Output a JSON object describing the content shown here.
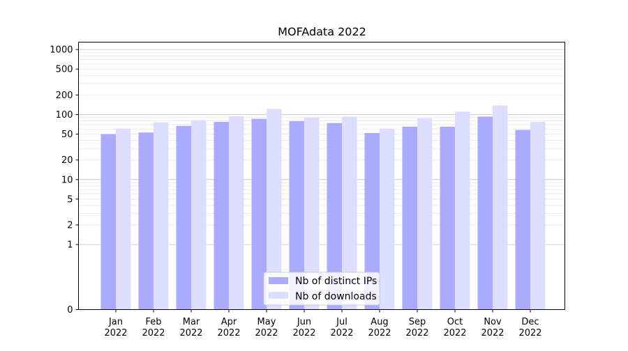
{
  "chart_data": {
    "type": "bar",
    "title": "MOFAdata 2022",
    "xlabel": "",
    "ylabel": "",
    "yscale": "symlog",
    "ylim": [
      0,
      1300
    ],
    "yticks": [
      0,
      1,
      2,
      5,
      10,
      20,
      50,
      100,
      200,
      500,
      1000
    ],
    "categories": [
      "Jan\n2022",
      "Feb\n2022",
      "Mar\n2022",
      "Apr\n2022",
      "May\n2022",
      "Jun\n2022",
      "Jul\n2022",
      "Aug\n2022",
      "Sep\n2022",
      "Oct\n2022",
      "Nov\n2022",
      "Dec\n2022"
    ],
    "series": [
      {
        "name": "Nb of distinct IPs",
        "color": "#aaaaff",
        "values": [
          50,
          53,
          67,
          77,
          86,
          79,
          74,
          52,
          65,
          65,
          93,
          58
        ]
      },
      {
        "name": "Nb of downloads",
        "color": "#ddddff",
        "values": [
          61,
          76,
          82,
          94,
          122,
          91,
          93,
          61,
          88,
          111,
          138,
          77
        ]
      }
    ],
    "grid": {
      "major": true,
      "minor": true
    },
    "legend_position": "bottom-center"
  }
}
